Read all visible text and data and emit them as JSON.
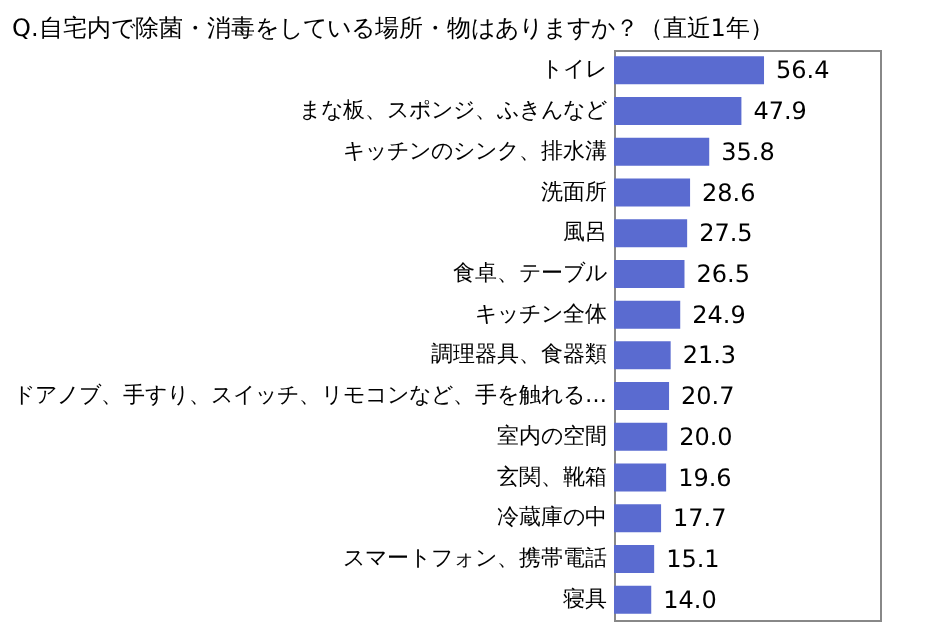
{
  "chart_data": {
    "type": "bar",
    "orientation": "horizontal",
    "title": "Q.自宅内で除菌・消毒をしている場所・物はありますか？（直近1年）",
    "categories": [
      "トイレ",
      "まな板、スポンジ、ふきんなど",
      "キッチンのシンク、排水溝",
      "洗面所",
      "風呂",
      "食卓、テーブル",
      "キッチン全体",
      "調理器具、食器類",
      "ドアノブ、手すり、スイッチ、リモコンなど、手を触れる…",
      "室内の空間",
      "玄関、靴箱",
      "冷蔵庫の中",
      "スマートフォン、携帯電話",
      "寝具"
    ],
    "values": [
      56.4,
      47.9,
      35.8,
      28.6,
      27.5,
      26.5,
      24.9,
      21.3,
      20.7,
      20.0,
      19.6,
      17.7,
      15.1,
      14.0
    ],
    "value_labels": [
      "56.4",
      "47.9",
      "35.8",
      "28.6",
      "27.5",
      "26.5",
      "24.9",
      "21.3",
      "20.7",
      "20.0",
      "19.6",
      "17.7",
      "15.1",
      "14.0"
    ],
    "color": "#5a6bd0",
    "xlim": [
      0,
      100
    ]
  }
}
